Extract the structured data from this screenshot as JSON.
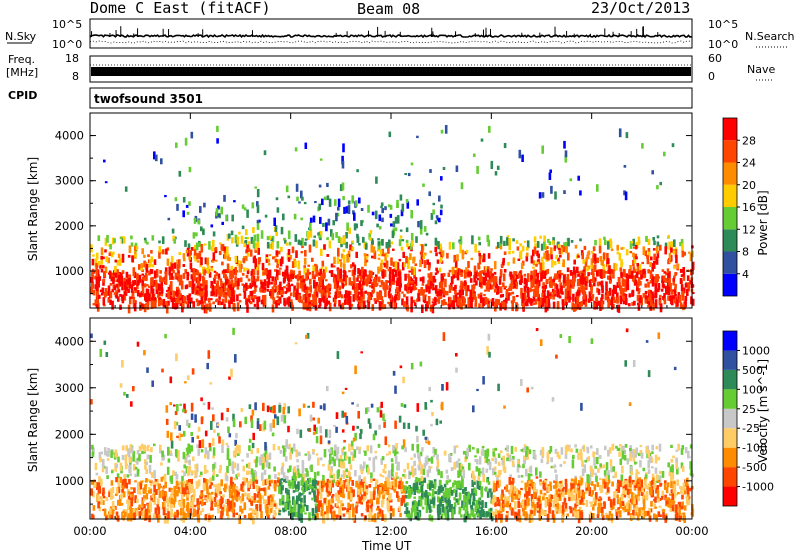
{
  "header": {
    "station": "Dome C East (fitACF)",
    "beam": "Beam 08",
    "date": "23/Oct/2013"
  },
  "panels": {
    "nsky": {
      "label": "N.Sky",
      "ticks": [
        "10^5",
        "10^0"
      ]
    },
    "nsearch": {
      "label": "N.Search",
      "ticks": [
        "10^5",
        "10^0"
      ]
    },
    "freq": {
      "label_line1": "Freq.",
      "label_line2": "[MHz]",
      "ticks": [
        "18",
        "8"
      ]
    },
    "nave": {
      "label": "Nave",
      "ticks": [
        "60",
        "0"
      ]
    },
    "cpid": {
      "label": "CPID",
      "value": "twofsound 3501"
    }
  },
  "colors": {
    "power": [
      "#0000ff",
      "#3050a0",
      "#2e8b57",
      "#66cc33",
      "#ffcc00",
      "#ff8c00",
      "#ff4500",
      "#ff0000"
    ],
    "velocity": [
      "#ff0000",
      "#ff4500",
      "#ff8c00",
      "#ffcc66",
      "#c8c8c8",
      "#66cc33",
      "#2e8b57",
      "#3050a0",
      "#0000ff"
    ]
  },
  "chart_data": [
    {
      "type": "heatmap",
      "name": "power",
      "ylabel": "Slant Range [km]",
      "ylim": [
        180,
        4500
      ],
      "yticks": [
        "1000",
        "2000",
        "3000",
        "4000"
      ],
      "yvalues": [
        1000,
        2000,
        3000,
        4000
      ],
      "xlim": [
        0,
        24
      ],
      "colorbar_label": "Power [dB]",
      "colorbar_ticks": [
        "4",
        "8",
        "12",
        "16",
        "20",
        "24",
        "28"
      ],
      "bands": [
        {
          "t0": 0,
          "t1": 24,
          "r0": 200,
          "r1": 1000,
          "level": "strong"
        },
        {
          "t0": 0,
          "t1": 24,
          "r0": 1000,
          "r1": 1800,
          "level": "medium"
        },
        {
          "t0": 5,
          "t1": 12,
          "r0": 1800,
          "r1": 2600,
          "level": "weak"
        }
      ]
    },
    {
      "type": "heatmap",
      "name": "velocity",
      "ylabel": "Slant Range [km]",
      "ylim": [
        180,
        4500
      ],
      "yticks": [
        "1000",
        "2000",
        "3000",
        "4000"
      ],
      "yvalues": [
        1000,
        2000,
        3000,
        4000
      ],
      "xlim": [
        0,
        24
      ],
      "xlabel": "Time UT",
      "xticks": [
        "00:00",
        "04:00",
        "08:00",
        "12:00",
        "16:00",
        "20:00",
        "00:00"
      ],
      "xvalues": [
        0,
        4,
        8,
        12,
        16,
        20,
        24
      ],
      "colorbar_label": "Velocity [m s^-1]",
      "colorbar_ticks": [
        "1000",
        "500",
        "100",
        "25",
        "-25",
        "-100",
        "-500",
        "-1000"
      ]
    }
  ]
}
